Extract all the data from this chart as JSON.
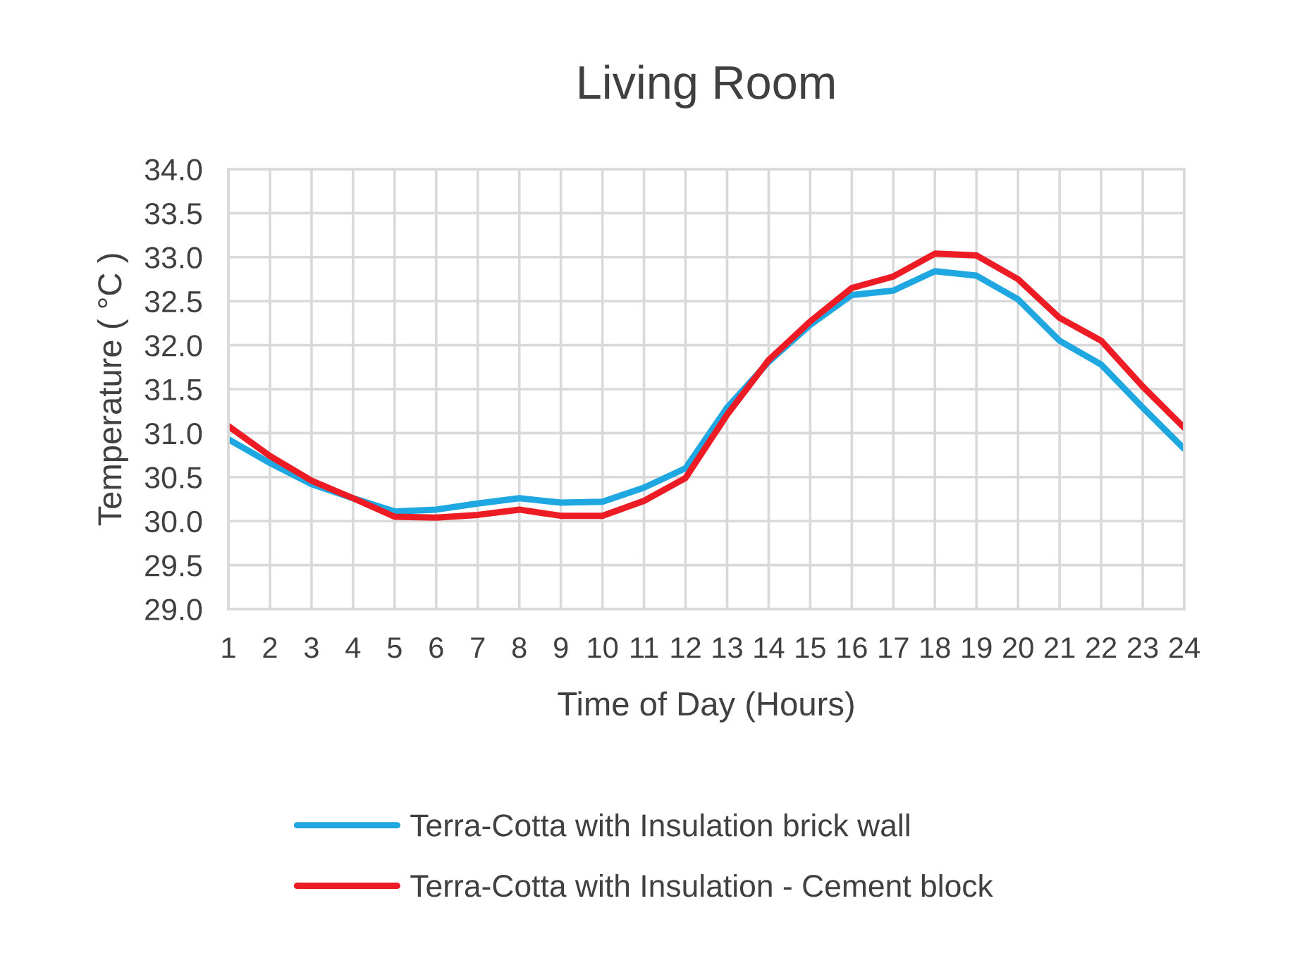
{
  "chart_data": {
    "type": "line",
    "title": "Living Room",
    "xlabel": "Time of Day (Hours)",
    "ylabel": "Temperature ( °C )",
    "x": [
      1,
      2,
      3,
      4,
      5,
      6,
      7,
      8,
      9,
      10,
      11,
      12,
      13,
      14,
      15,
      16,
      17,
      18,
      19,
      20,
      21,
      22,
      23,
      24
    ],
    "series": [
      {
        "name": "Terra-Cotta with Insulation brick wall",
        "color": "#1ea7e1",
        "values": [
          30.93,
          30.66,
          30.42,
          30.26,
          30.11,
          30.13,
          30.2,
          30.26,
          30.21,
          30.22,
          30.38,
          30.6,
          31.29,
          31.81,
          32.23,
          32.57,
          32.62,
          32.84,
          32.79,
          32.52,
          32.05,
          31.78,
          31.29,
          30.82
        ]
      },
      {
        "name": "Terra-Cotta with Insulation - Cement block",
        "color": "#ed1c24",
        "values": [
          31.08,
          30.74,
          30.46,
          30.26,
          30.05,
          30.04,
          30.07,
          30.13,
          30.06,
          30.06,
          30.23,
          30.49,
          31.21,
          31.83,
          32.27,
          32.65,
          32.78,
          33.04,
          33.02,
          32.75,
          32.31,
          32.05,
          31.53,
          31.06
        ]
      }
    ],
    "xlim": [
      1,
      24
    ],
    "xticks": [
      1,
      2,
      3,
      4,
      5,
      6,
      7,
      8,
      9,
      10,
      11,
      12,
      13,
      14,
      15,
      16,
      17,
      18,
      19,
      20,
      21,
      22,
      23,
      24
    ],
    "ylim": [
      29,
      34
    ],
    "yticks": [
      {
        "value": 29,
        "label": "29.0"
      },
      {
        "value": 29.5,
        "label": "29.5"
      },
      {
        "value": 30,
        "label": "30.0"
      },
      {
        "value": 30.5,
        "label": "30.5"
      },
      {
        "value": 31,
        "label": "31.0"
      },
      {
        "value": 31.5,
        "label": "31.5"
      },
      {
        "value": 32,
        "label": "32.0"
      },
      {
        "value": 32.5,
        "label": "32.5"
      },
      {
        "value": 33,
        "label": "33.0"
      },
      {
        "value": 33.5,
        "label": "33.5"
      },
      {
        "value": 34,
        "label": "34.0"
      }
    ],
    "grid": true,
    "legend": "bottom",
    "marker": "none",
    "line_style": "solid"
  }
}
